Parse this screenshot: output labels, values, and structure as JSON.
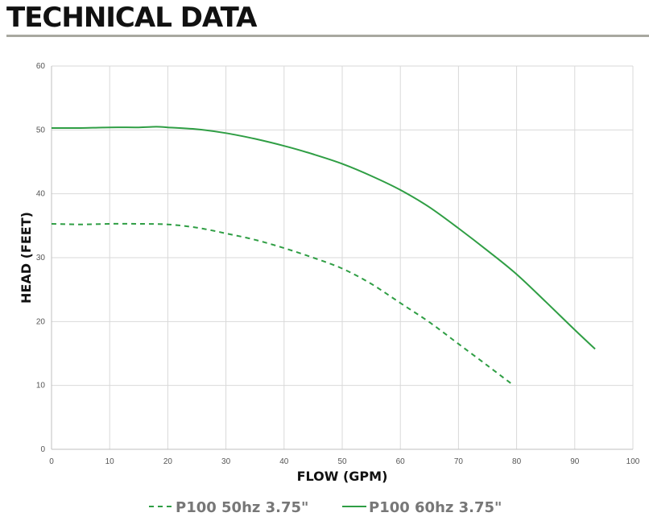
{
  "page": {
    "title": "TECHNICAL DATA"
  },
  "colors": {
    "series": "#2f9e44",
    "grid": "#d9d9d9",
    "axis": "#bfbfbf",
    "title_rule": "#a8a8a0"
  },
  "chart_data": {
    "type": "line",
    "title": "",
    "xlabel": "FLOW (GPM)",
    "ylabel": "HEAD (FEET)",
    "xlim": [
      0,
      100
    ],
    "ylim": [
      0,
      60
    ],
    "x_ticks": [
      0,
      10,
      20,
      30,
      40,
      50,
      60,
      70,
      80,
      90,
      100
    ],
    "y_ticks": [
      0,
      10,
      20,
      30,
      40,
      50,
      60
    ],
    "grid": true,
    "legend_position": "bottom",
    "series": [
      {
        "name": "P100 50hz 3.75\"",
        "style": "dashed",
        "color": "#2f9e44",
        "points": [
          [
            0,
            35.3
          ],
          [
            5,
            35.2
          ],
          [
            10,
            35.3
          ],
          [
            15,
            35.3
          ],
          [
            20,
            35.2
          ],
          [
            25,
            34.7
          ],
          [
            30,
            33.8
          ],
          [
            35,
            32.8
          ],
          [
            40,
            31.5
          ],
          [
            45,
            30.0
          ],
          [
            50,
            28.3
          ],
          [
            55,
            25.9
          ],
          [
            60,
            22.9
          ],
          [
            65,
            19.9
          ],
          [
            70,
            16.5
          ],
          [
            75,
            13.1
          ],
          [
            79.5,
            10.0
          ]
        ]
      },
      {
        "name": "P100 60hz 3.75\"",
        "style": "solid",
        "color": "#2f9e44",
        "points": [
          [
            0,
            50.3
          ],
          [
            5,
            50.3
          ],
          [
            10,
            50.4
          ],
          [
            15,
            50.4
          ],
          [
            18,
            50.5
          ],
          [
            20,
            50.4
          ],
          [
            25,
            50.1
          ],
          [
            30,
            49.5
          ],
          [
            35,
            48.6
          ],
          [
            40,
            47.5
          ],
          [
            45,
            46.2
          ],
          [
            50,
            44.7
          ],
          [
            55,
            42.8
          ],
          [
            60,
            40.6
          ],
          [
            65,
            37.9
          ],
          [
            70,
            34.6
          ],
          [
            75,
            31.1
          ],
          [
            80,
            27.4
          ],
          [
            85,
            23.1
          ],
          [
            90,
            18.7
          ],
          [
            93.5,
            15.7
          ]
        ]
      }
    ]
  }
}
